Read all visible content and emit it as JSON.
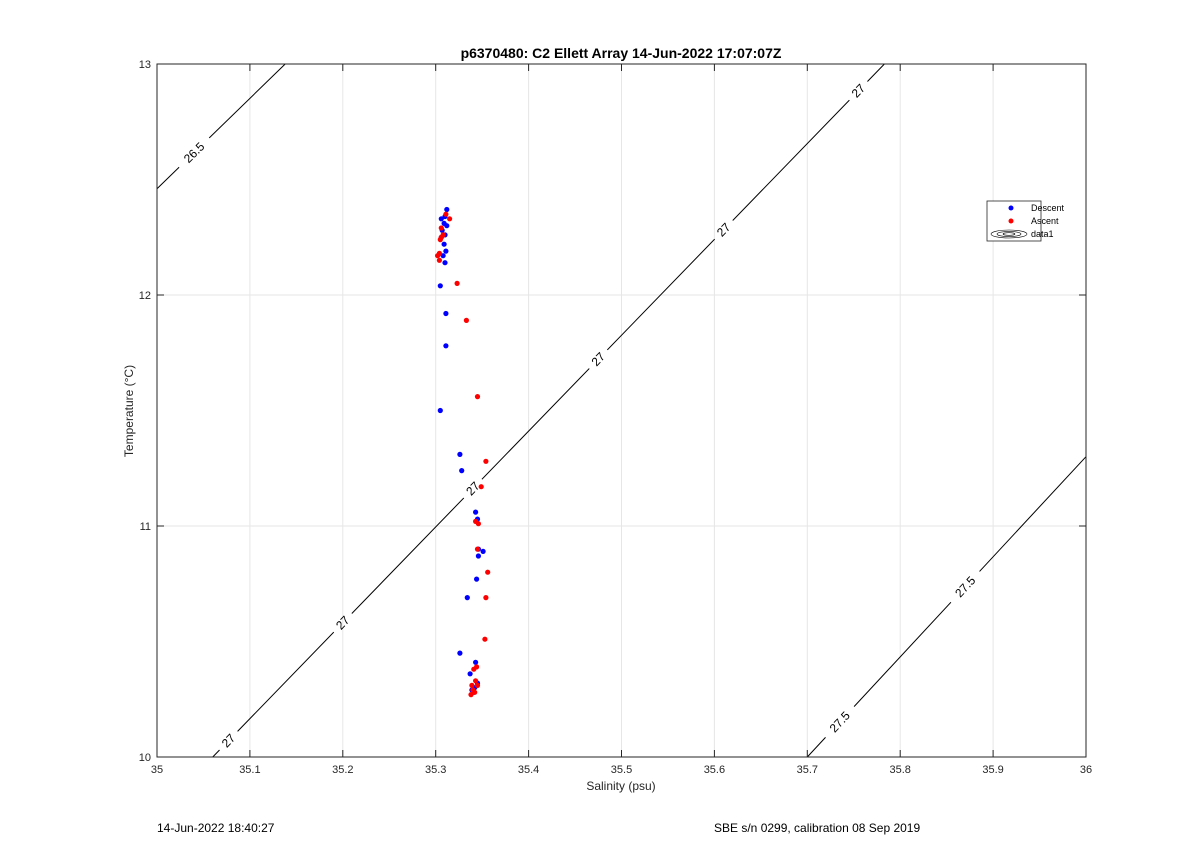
{
  "footer": {
    "left": "14-Jun-2022 18:40:27",
    "right": "SBE s/n 0299, calibration 08 Sep 2019"
  },
  "chart_data": {
    "type": "scatter",
    "title": "p6370480: C2 Ellett Array 14-Jun-2022 17:07:07Z",
    "xlabel": "Salinity (psu)",
    "ylabel": "Temperature (°C)",
    "xlim": [
      35,
      36
    ],
    "ylim": [
      10,
      13
    ],
    "xticks": [
      35,
      35.1,
      35.2,
      35.3,
      35.4,
      35.5,
      35.6,
      35.7,
      35.8,
      35.9,
      36
    ],
    "xtick_labels": [
      "35",
      "35.1",
      "35.2",
      "35.3",
      "35.4",
      "35.5",
      "35.6",
      "35.7",
      "35.8",
      "35.9",
      "36"
    ],
    "yticks": [
      10,
      11,
      12,
      13
    ],
    "ytick_labels": [
      "10",
      "11",
      "12",
      "13"
    ],
    "grid": true,
    "legend_placement": "top-right",
    "legend": [
      "Descent",
      "Ascent",
      "data1"
    ],
    "colors": {
      "descent": "#0000ff",
      "ascent": "#ff0000",
      "contour": "#000000"
    },
    "series": [
      {
        "name": "Descent",
        "color": "#0000ff",
        "x": [
          35.312,
          35.31,
          35.306,
          35.309,
          35.312,
          35.307,
          35.31,
          35.306,
          35.309,
          35.311,
          35.308,
          35.31,
          35.305,
          35.311,
          35.311,
          35.305,
          35.326,
          35.328,
          35.343,
          35.345,
          35.346,
          35.351,
          35.346,
          35.344,
          35.334,
          35.326,
          35.343,
          35.337,
          35.345,
          35.342,
          35.339,
          35.341
        ],
        "y": [
          12.37,
          12.34,
          12.33,
          12.31,
          12.3,
          12.28,
          12.26,
          12.25,
          12.22,
          12.19,
          12.17,
          12.14,
          12.04,
          11.92,
          11.78,
          11.5,
          11.31,
          11.24,
          11.06,
          11.03,
          10.87,
          10.89,
          10.9,
          10.77,
          10.69,
          10.45,
          10.41,
          10.36,
          10.32,
          10.3,
          10.29,
          10.28
        ]
      },
      {
        "name": "Ascent",
        "color": "#ff0000",
        "x": [
          35.311,
          35.315,
          35.306,
          35.308,
          35.306,
          35.305,
          35.304,
          35.302,
          35.304,
          35.323,
          35.333,
          35.345,
          35.354,
          35.349,
          35.343,
          35.346,
          35.345,
          35.356,
          35.354,
          35.353,
          35.344,
          35.341,
          35.343,
          35.345,
          35.339,
          35.34,
          35.342,
          35.338
        ],
        "y": [
          12.35,
          12.33,
          12.29,
          12.26,
          12.25,
          12.24,
          12.18,
          12.17,
          12.15,
          12.05,
          11.89,
          11.56,
          11.28,
          11.17,
          11.02,
          11.01,
          10.9,
          10.8,
          10.69,
          10.51,
          10.39,
          10.38,
          10.33,
          10.31,
          10.31,
          10.29,
          10.28,
          10.27
        ]
      }
    ],
    "contours": [
      {
        "level": "26.5",
        "x": [
          35.0,
          35.138
        ],
        "y": [
          12.46,
          13.0
        ],
        "labels": [
          {
            "text": "26.5",
            "x": 35.04
          }
        ]
      },
      {
        "level": "27",
        "x": [
          35.06,
          35.783
        ],
        "y": [
          10.0,
          13.0
        ],
        "labels": [
          {
            "text": "27",
            "x": 35.077
          },
          {
            "text": "27",
            "x": 35.2
          },
          {
            "text": "27",
            "x": 35.34
          },
          {
            "text": "27",
            "x": 35.475
          },
          {
            "text": "27",
            "x": 35.61
          },
          {
            "text": "27",
            "x": 35.755
          }
        ]
      },
      {
        "level": "27.5",
        "x": [
          35.7,
          36.0
        ],
        "y": [
          10.0,
          11.3
        ],
        "labels": [
          {
            "text": "27.5",
            "x": 35.735
          },
          {
            "text": "27.5",
            "x": 35.87
          }
        ]
      }
    ]
  }
}
